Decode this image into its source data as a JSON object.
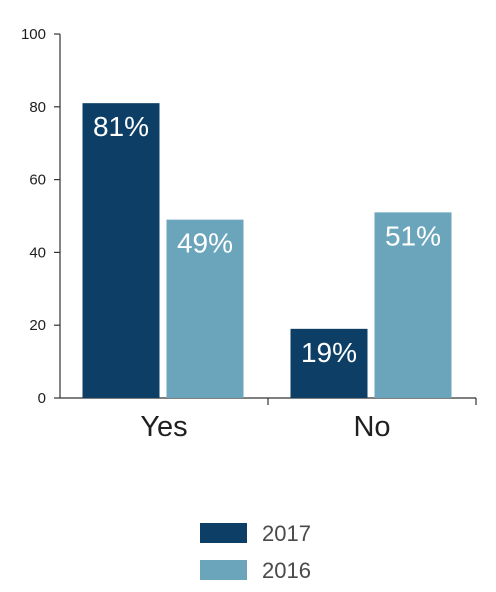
{
  "chart_data": {
    "type": "bar",
    "title": "",
    "xlabel": "",
    "ylabel": "",
    "categories": [
      "Yes",
      "No"
    ],
    "ylim": [
      0,
      100
    ],
    "yticks": [
      0,
      20,
      40,
      60,
      80,
      100
    ],
    "series": [
      {
        "name": "2017",
        "values": [
          81,
          19
        ],
        "labels": [
          "81%",
          "19%"
        ],
        "color": "#0d3f66"
      },
      {
        "name": "2016",
        "values": [
          49,
          51
        ],
        "labels": [
          "49%",
          "51%"
        ],
        "color": "#6aa5bb"
      }
    ],
    "grid": false,
    "legend": "bottom-center"
  }
}
